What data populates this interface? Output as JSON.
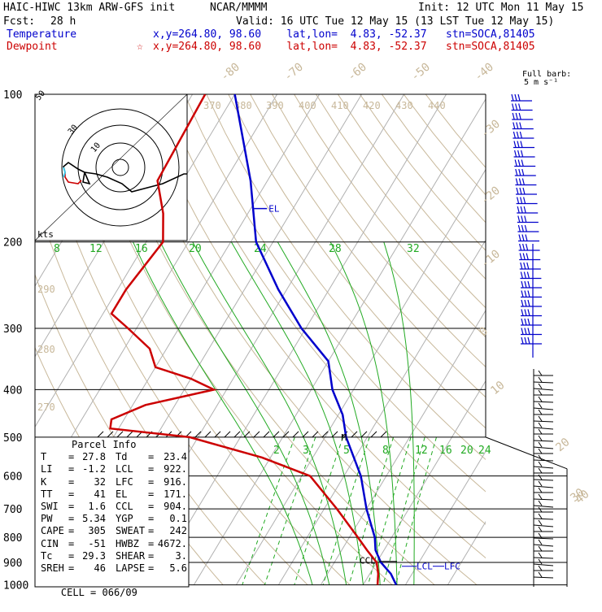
{
  "header": {
    "model": "HAIC-HIWC 13km ARW-GFS init",
    "org": "NCAR/MMMM",
    "init": "Init: 12 UTC Mon 11 May 15",
    "fcst_label": "Fcst:",
    "fcst_value": "28 h",
    "valid": "Valid: 16 UTC Tue 12 May 15 (13 LST Tue 12 May 15)",
    "temperature_label": "Temperature",
    "dewpoint_label": "Dewpoint",
    "temp_loc": "x,y=264.80, 98.60    lat,lon=  4.83, -52.37   stn=SOCA,81405",
    "dew_loc": "x,y=264.80, 98.60    lat,lon=  4.83, -52.37   stn=SOCA,81405",
    "dew_star": "☆"
  },
  "colors": {
    "temperature": "#0000cc",
    "dewpoint": "#cc0000",
    "mixing_ratio": "#22aa22",
    "theta": "#c8b89a",
    "isotherm": "#b0b0b0",
    "grid": "#000000",
    "hodo_highlight": "#44c8e8"
  },
  "chart_data": {
    "type": "skew-t",
    "pressure_levels": [
      100,
      200,
      300,
      400,
      500,
      600,
      700,
      800,
      900,
      1000
    ],
    "isotherm_labels": [
      "-80",
      "-70",
      "-60",
      "-50",
      "-40",
      "-30",
      "-20",
      "-10",
      "0",
      "10",
      "20",
      "30",
      "40"
    ],
    "theta_labels": [
      "370",
      "380",
      "390",
      "400",
      "410",
      "420",
      "430",
      "440",
      "290",
      "280",
      "270"
    ],
    "mixing_ratio_labels_upper": [
      "8",
      "12",
      "16",
      "20",
      "24",
      "28",
      "32"
    ],
    "mixing_ratio_labels_lower": [
      "2",
      "3",
      "5",
      "8",
      "12",
      "16",
      "20",
      "24"
    ],
    "temperature_profile": [
      {
        "p": 100,
        "t": -80
      },
      {
        "p": 150,
        "t": -64
      },
      {
        "p": 200,
        "t": -54
      },
      {
        "p": 250,
        "t": -42
      },
      {
        "p": 300,
        "t": -31
      },
      {
        "p": 350,
        "t": -20
      },
      {
        "p": 400,
        "t": -15
      },
      {
        "p": 450,
        "t": -9
      },
      {
        "p": 500,
        "t": -5
      },
      {
        "p": 600,
        "t": 4
      },
      {
        "p": 700,
        "t": 10
      },
      {
        "p": 800,
        "t": 16
      },
      {
        "p": 850,
        "t": 18
      },
      {
        "p": 900,
        "t": 21
      },
      {
        "p": 950,
        "t": 25
      },
      {
        "p": 1000,
        "t": 27.8
      }
    ],
    "dewpoint_profile": [
      {
        "p": 100,
        "t": -87
      },
      {
        "p": 150,
        "t": -86
      },
      {
        "p": 175,
        "t": -80
      },
      {
        "p": 200,
        "t": -76
      },
      {
        "p": 250,
        "t": -78
      },
      {
        "p": 280,
        "t": -78
      },
      {
        "p": 300,
        "t": -72
      },
      {
        "p": 330,
        "t": -64
      },
      {
        "p": 360,
        "t": -60
      },
      {
        "p": 380,
        "t": -50
      },
      {
        "p": 400,
        "t": -43
      },
      {
        "p": 430,
        "t": -57
      },
      {
        "p": 460,
        "t": -63
      },
      {
        "p": 480,
        "t": -62
      },
      {
        "p": 500,
        "t": -42
      },
      {
        "p": 550,
        "t": -22
      },
      {
        "p": 600,
        "t": -8
      },
      {
        "p": 700,
        "t": 3
      },
      {
        "p": 800,
        "t": 12
      },
      {
        "p": 850,
        "t": 16
      },
      {
        "p": 900,
        "t": 20
      },
      {
        "p": 950,
        "t": 22
      },
      {
        "p": 1000,
        "t": 23.4
      }
    ],
    "markers": {
      "el": "EL",
      "m": "M",
      "ccl": "CCL",
      "lcl": "LCL",
      "lfc": "LFC"
    },
    "hodograph": {
      "ring_labels": [
        "50",
        "30",
        "10"
      ],
      "units_label": "kts"
    },
    "wind_barb_title": "Full barb:",
    "wind_barb_subtitle": "5 m s⁻¹"
  },
  "parcel": {
    "title": "Parcel Info",
    "rows": [
      [
        "T",
        "27.8",
        "Td",
        "23.4"
      ],
      [
        "LI",
        "-1.2",
        "LCL",
        "922."
      ],
      [
        "K",
        "32",
        "LFC",
        "916."
      ],
      [
        "TT",
        "41",
        "EL",
        "171."
      ],
      [
        "SWI",
        "1.6",
        "CCL",
        "904."
      ],
      [
        "PW",
        "5.34",
        "YGP",
        "0.1"
      ],
      [
        "CAPE",
        "305",
        "SWEAT",
        "242"
      ],
      [
        "CIN",
        "-51",
        "HWBZ",
        "4672."
      ],
      [
        "Tc",
        "29.3",
        "SHEAR",
        "3."
      ],
      [
        "SREH",
        "46",
        "LAPSE",
        "5.6"
      ]
    ],
    "cell_label": "CELL",
    "cell_value": "066/09"
  }
}
